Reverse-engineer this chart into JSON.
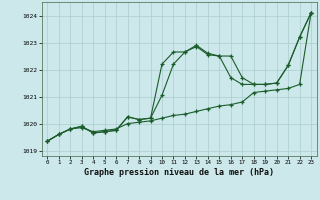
{
  "title": "Graphe pression niveau de la mer (hPa)",
  "background_color": "#cce8ea",
  "grid_color": "#aacccc",
  "line_color": "#1a5c2a",
  "xlim": [
    -0.5,
    23.5
  ],
  "ylim": [
    1018.8,
    1024.5
  ],
  "yticks": [
    1019,
    1020,
    1021,
    1022,
    1023,
    1024
  ],
  "xticks": [
    0,
    1,
    2,
    3,
    4,
    5,
    6,
    7,
    8,
    9,
    10,
    11,
    12,
    13,
    14,
    15,
    16,
    17,
    18,
    19,
    20,
    21,
    22,
    23
  ],
  "series1_x": [
    0,
    1,
    2,
    3,
    4,
    5,
    6,
    7,
    8,
    9,
    10,
    11,
    12,
    13,
    14,
    15,
    16,
    17,
    18,
    19,
    20,
    21,
    22,
    23
  ],
  "series1_y": [
    1019.35,
    1019.6,
    1019.8,
    1019.85,
    1019.7,
    1019.75,
    1019.8,
    1020.0,
    1020.05,
    1020.1,
    1020.2,
    1020.3,
    1020.35,
    1020.45,
    1020.55,
    1020.65,
    1020.7,
    1020.8,
    1021.15,
    1021.2,
    1021.25,
    1021.3,
    1021.45,
    1024.1
  ],
  "series2_x": [
    0,
    1,
    2,
    3,
    4,
    5,
    6,
    7,
    8,
    9,
    10,
    11,
    12,
    13,
    14,
    15,
    16,
    17,
    18,
    19,
    20,
    21,
    22,
    23
  ],
  "series2_y": [
    1019.35,
    1019.6,
    1019.8,
    1019.9,
    1019.65,
    1019.7,
    1019.75,
    1020.25,
    1020.15,
    1020.2,
    1021.05,
    1022.2,
    1022.65,
    1022.85,
    1022.55,
    1022.5,
    1021.7,
    1021.45,
    1021.45,
    1021.45,
    1021.5,
    1022.15,
    1023.2,
    1024.1
  ],
  "series3_x": [
    0,
    1,
    2,
    3,
    4,
    5,
    6,
    7,
    8,
    9,
    10,
    11,
    12,
    13,
    14,
    15,
    16,
    17,
    18,
    19,
    20,
    21,
    22,
    23
  ],
  "series3_y": [
    1019.35,
    1019.6,
    1019.8,
    1019.9,
    1019.65,
    1019.7,
    1019.75,
    1020.25,
    1020.15,
    1020.2,
    1022.2,
    1022.65,
    1022.65,
    1022.9,
    1022.6,
    1022.5,
    1022.5,
    1021.7,
    1021.45,
    1021.45,
    1021.5,
    1022.15,
    1023.2,
    1024.1
  ]
}
